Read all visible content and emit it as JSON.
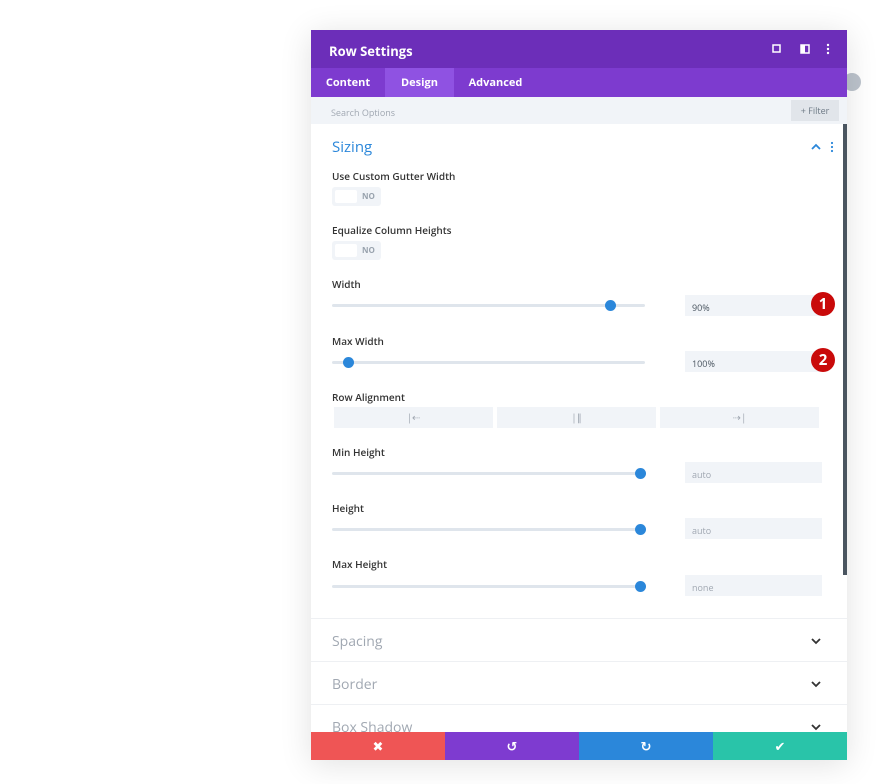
{
  "header": {
    "title": "Row Settings"
  },
  "tabs": [
    "Content",
    "Design",
    "Advanced"
  ],
  "search": {
    "placeholder": "Search Options",
    "filter": "Filter"
  },
  "sizing": {
    "title": "Sizing",
    "fields": [
      {
        "label": "Use Custom Gutter Width",
        "toggle": "NO"
      },
      {
        "label": "Equalize Column Heights",
        "toggle": "NO"
      },
      {
        "label": "Width",
        "value": "90%",
        "badge": "1"
      },
      {
        "label": "Max Width",
        "value": "100%",
        "badge": "2"
      },
      {
        "label": "Row Alignment"
      },
      {
        "label": "Min Height",
        "value": "auto"
      },
      {
        "label": "Height",
        "value": "auto"
      },
      {
        "label": "Max Height",
        "value": "none"
      }
    ]
  },
  "collapsed": [
    "Spacing",
    "Border",
    "Box Shadow"
  ]
}
